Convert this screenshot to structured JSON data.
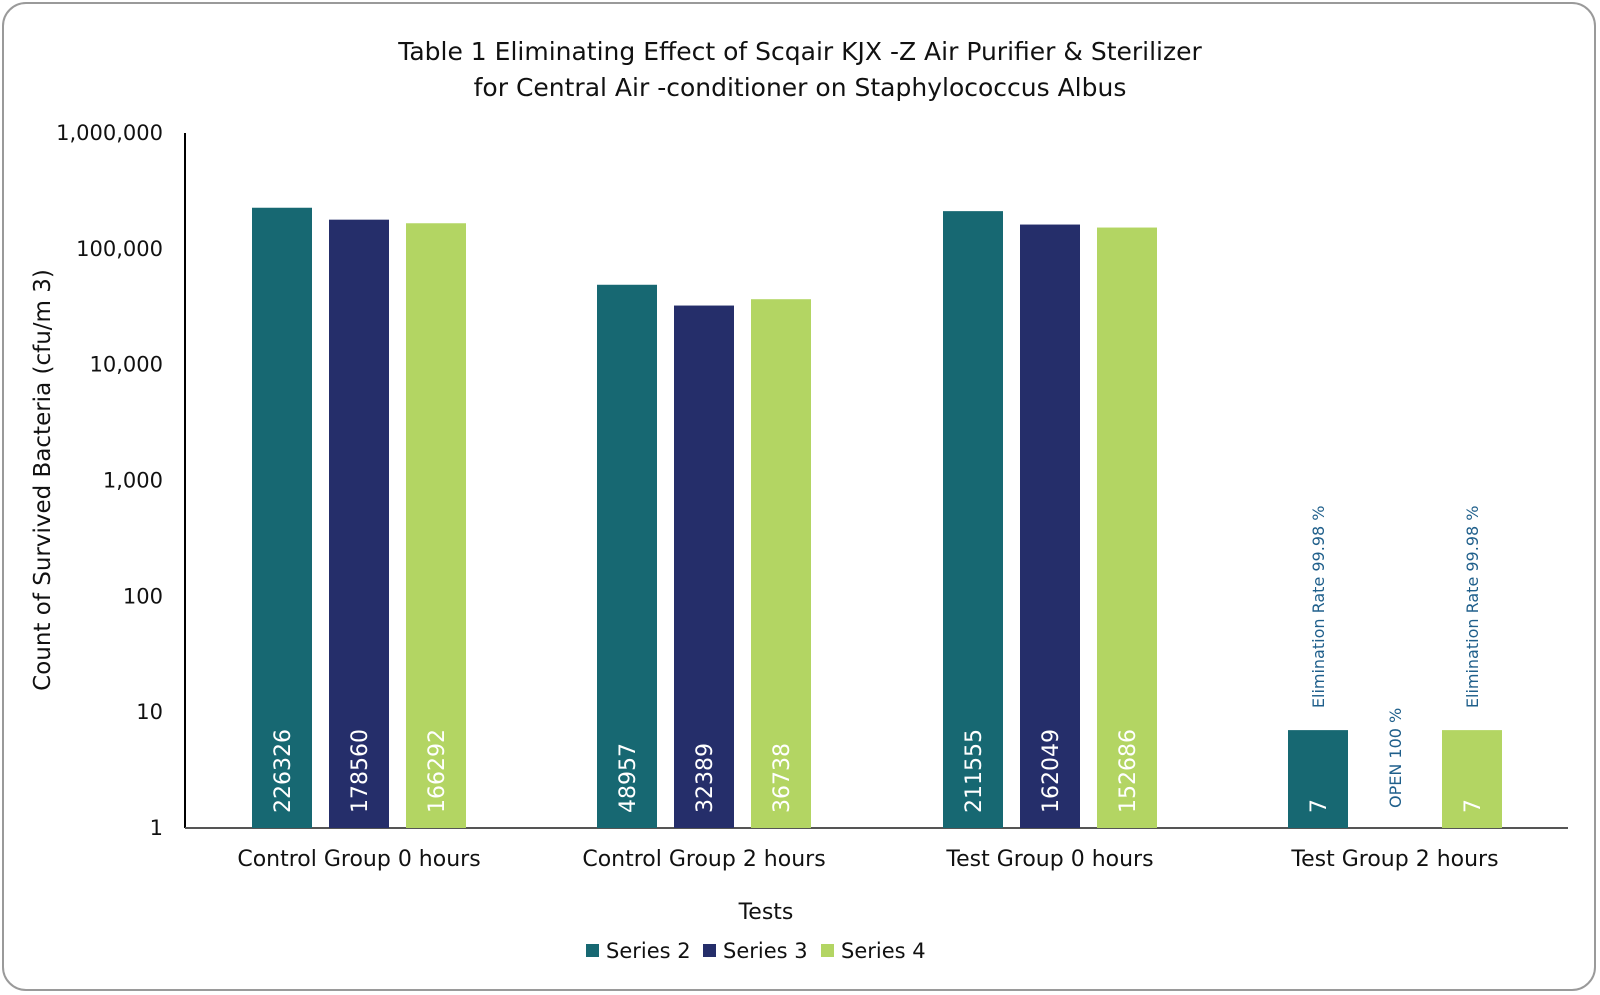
{
  "chart_data": {
    "type": "bar",
    "title_lines": [
      "Table 1 Eliminating Effect of Scqair KJX  -Z Air Purifier & Sterilizer",
      "for Central Air -conditioner on Staphylococcus Albus"
    ],
    "xlabel": "Tests",
    "ylabel": "Count of Survived Bacteria (cfu/m  3)",
    "yscale": "log",
    "ylim": [
      1,
      1000000
    ],
    "yticks": [
      {
        "value": 1,
        "label": "1"
      },
      {
        "value": 10,
        "label": "10"
      },
      {
        "value": 100,
        "label": "100"
      },
      {
        "value": 1000,
        "label": "1,000"
      },
      {
        "value": 10000,
        "label": "10,000"
      },
      {
        "value": 100000,
        "label": "100,000"
      },
      {
        "value": 1000000,
        "label": "1,000,000"
      }
    ],
    "categories": [
      "Control Group 0 hours",
      "Control Group 2 hours",
      "Test Group 0 hours",
      "Test Group 2 hours"
    ],
    "series": [
      {
        "name": "Series 2",
        "color": "#176872",
        "values": [
          226326,
          48957,
          211555,
          7
        ],
        "labels": [
          "226326",
          "48957",
          "211555",
          "7"
        ]
      },
      {
        "name": "Series 3",
        "color": "#252e6a",
        "values": [
          178560,
          32389,
          162049,
          null
        ],
        "labels": [
          "178560",
          "32389",
          "162049",
          ""
        ]
      },
      {
        "name": "Series 4",
        "color": "#b3d563",
        "values": [
          166292,
          36738,
          152686,
          7
        ],
        "labels": [
          "166292",
          "36738",
          "152686",
          "7"
        ]
      }
    ],
    "annotations": [
      {
        "category": 3,
        "series": 0,
        "text": "Elimination Rate  99.98 %"
      },
      {
        "category": 3,
        "series": 1,
        "text": "OPEN  100  %"
      },
      {
        "category": 3,
        "series": 2,
        "text": "Elimination Rate   99.98 %"
      }
    ],
    "legend": {
      "position": "bottom",
      "items": [
        "Series 2",
        "Series 3",
        "Series 4"
      ]
    },
    "colors": {
      "label_text": "#ffffff",
      "annotation_text": "#1f5f8b",
      "axis": "#000000"
    }
  }
}
